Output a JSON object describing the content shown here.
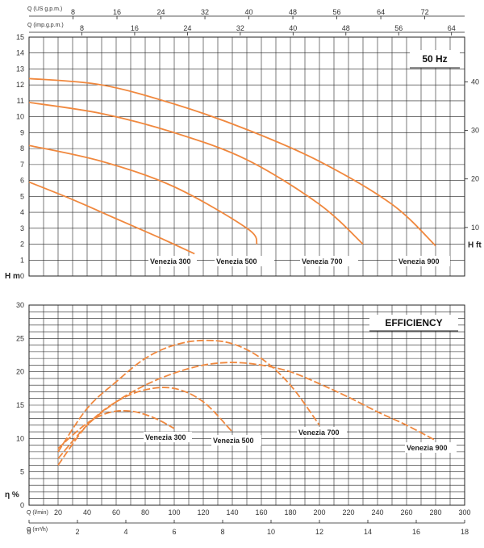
{
  "colors": {
    "curve": "#f0883e",
    "grid": "#222222",
    "background": "#ffffff"
  },
  "chart_data": [
    {
      "type": "line",
      "box_label": "50 Hz",
      "ylabel": "H m",
      "ylabel_right": "H ft",
      "xlabel_top_us": "Q (US g.p.m.)",
      "xlabel_top_imp": "Q (imp.g.p.m.)",
      "ylim": [
        0,
        15
      ],
      "xlim_l_min": [
        0,
        300
      ],
      "y_ticks": [
        0,
        1,
        2,
        3,
        4,
        5,
        6,
        7,
        8,
        9,
        10,
        11,
        12,
        13,
        14,
        15
      ],
      "y_ticks_ft": [
        10,
        20,
        30,
        40
      ],
      "x_ticks_us_gpm": [
        8,
        16,
        24,
        32,
        40,
        48,
        56,
        64,
        72
      ],
      "x_ticks_imp_gpm": [
        8,
        16,
        24,
        32,
        40,
        48,
        56,
        64
      ],
      "series": [
        {
          "name": "Venezia 300",
          "x": [
            0,
            30,
            60,
            90,
            114
          ],
          "y": [
            5.9,
            4.8,
            3.6,
            2.4,
            1.4
          ]
        },
        {
          "name": "Venezia 500",
          "x": [
            0,
            50,
            100,
            150,
            157
          ],
          "y": [
            8.2,
            7.2,
            5.6,
            3.0,
            2.0
          ]
        },
        {
          "name": "Venezia 700",
          "x": [
            0,
            50,
            100,
            150,
            200,
            230
          ],
          "y": [
            10.9,
            10.2,
            9.0,
            7.3,
            4.5,
            2.0
          ]
        },
        {
          "name": "Venezia 900",
          "x": [
            0,
            50,
            100,
            150,
            200,
            250,
            280
          ],
          "y": [
            12.4,
            12.0,
            10.8,
            9.2,
            7.2,
            4.5,
            1.9
          ]
        }
      ]
    },
    {
      "type": "line",
      "box_label": "EFFICIENCY",
      "ylabel": "η %",
      "xlabel": "Q (l/min)",
      "xlabel2": "Q (m³/h)",
      "ylim": [
        0,
        30
      ],
      "xlim_l_min": [
        0,
        300
      ],
      "y_ticks": [
        0,
        5,
        10,
        15,
        20,
        25,
        30
      ],
      "x_ticks_l_min": [
        20,
        40,
        60,
        80,
        100,
        120,
        140,
        160,
        180,
        200,
        220,
        240,
        260,
        280,
        300
      ],
      "x_ticks_m3h": [
        0,
        2,
        4,
        6,
        8,
        10,
        12,
        14,
        16,
        18
      ],
      "series": [
        {
          "name": "Venezia 300",
          "x": [
            20,
            30,
            40,
            50,
            60,
            70,
            80,
            90,
            100
          ],
          "y": [
            8.5,
            10.5,
            12.3,
            13.5,
            14.1,
            14.1,
            13.6,
            12.7,
            11.5
          ]
        },
        {
          "name": "Venezia 500",
          "x": [
            20,
            40,
            60,
            80,
            100,
            120,
            140
          ],
          "y": [
            6.0,
            12.0,
            15.5,
            17.3,
            17.5,
            15.5,
            11.0
          ]
        },
        {
          "name": "Venezia 700",
          "x": [
            20,
            40,
            60,
            80,
            100,
            120,
            140,
            160,
            180,
            200
          ],
          "y": [
            8.0,
            14.5,
            18.5,
            22.0,
            24.0,
            24.7,
            24.2,
            22.0,
            18.0,
            12.0
          ]
        },
        {
          "name": "Venezia 900",
          "x": [
            20,
            40,
            60,
            80,
            100,
            120,
            140,
            160,
            180,
            200,
            220,
            240,
            260,
            280
          ],
          "y": [
            7.0,
            12.0,
            15.5,
            18.0,
            19.8,
            21.0,
            21.4,
            21.0,
            20.0,
            18.2,
            16.2,
            14.0,
            12.0,
            9.7
          ]
        }
      ]
    }
  ]
}
